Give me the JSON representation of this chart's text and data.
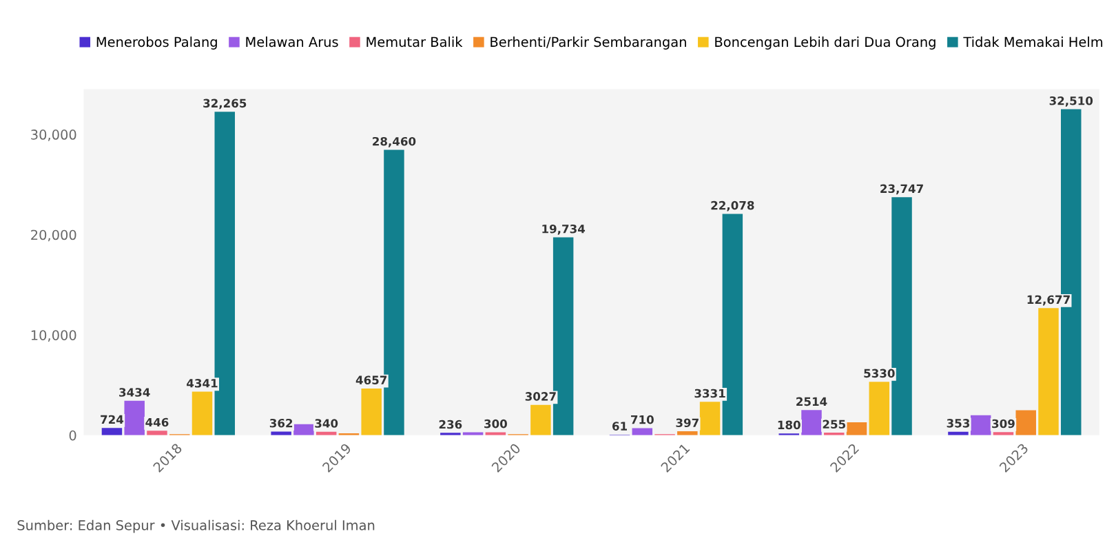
{
  "chart_data": {
    "type": "bar",
    "categories": [
      "2018",
      "2019",
      "2020",
      "2021",
      "2022",
      "2023"
    ],
    "series": [
      {
        "name": "Menerobos Palang",
        "color": "#4b2fd1",
        "values": [
          724,
          362,
          236,
          61,
          180,
          353
        ],
        "value_labels": [
          "724",
          "362",
          "236",
          "61",
          "180",
          "353"
        ]
      },
      {
        "name": "Melawan Arus",
        "color": "#9a5ce6",
        "values": [
          3434,
          1100,
          300,
          710,
          2514,
          2000
        ],
        "value_labels": [
          "3434",
          null,
          null,
          "710",
          "2514",
          null
        ]
      },
      {
        "name": "Memutar Balik",
        "color": "#f0647f",
        "values": [
          446,
          340,
          300,
          100,
          255,
          309
        ],
        "value_labels": [
          "446",
          "340",
          "300",
          null,
          "255",
          "309"
        ]
      },
      {
        "name": "Berhenti/Parkir Sembarangan",
        "color": "#f28b2a",
        "values": [
          100,
          200,
          100,
          397,
          1300,
          2500
        ],
        "value_labels": [
          null,
          null,
          null,
          "397",
          null,
          null
        ]
      },
      {
        "name": "Boncengan Lebih dari Dua Orang",
        "color": "#f7c21c",
        "values": [
          4341,
          4657,
          3027,
          3331,
          5330,
          12677
        ],
        "value_labels": [
          "4341",
          "4657",
          "3027",
          "3331",
          "5330",
          "12,677"
        ]
      },
      {
        "name": "Tidak Memakai Helm",
        "color": "#12808e",
        "values": [
          32265,
          28460,
          19734,
          22078,
          23747,
          32510
        ],
        "value_labels": [
          "32,265",
          "28,460",
          "19,734",
          "22,078",
          "23,747",
          "32,510"
        ]
      }
    ],
    "ylim": [
      0,
      34500
    ],
    "yticks": [
      0,
      {
        "value": 10000,
        "label": "10,000"
      },
      {
        "value": 20000,
        "label": "20,000"
      },
      {
        "value": 30000,
        "label": "30,000"
      }
    ],
    "grid": false,
    "legend": "top",
    "annotations": [
      "Sumber: Edan Sepur • Visualisasi: Reza Khoerul Iman"
    ]
  }
}
